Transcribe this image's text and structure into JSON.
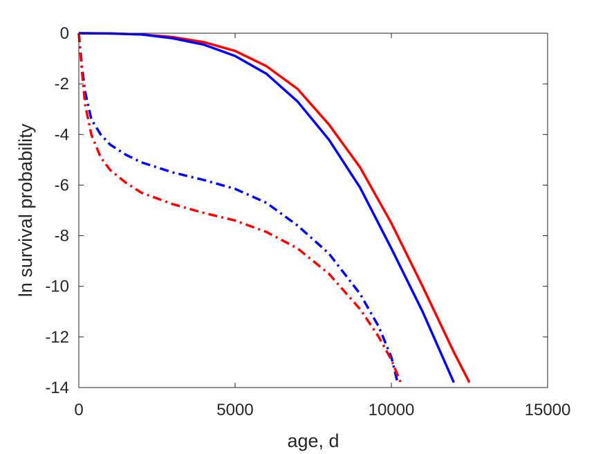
{
  "chart_data": {
    "type": "line",
    "title": "",
    "xlabel": "age, d",
    "ylabel": "ln survival probability",
    "xlim": [
      0,
      15000
    ],
    "ylim": [
      -14,
      0
    ],
    "xticks": [
      0,
      5000,
      10000,
      15000
    ],
    "yticks": [
      -14,
      -12,
      -10,
      -8,
      -6,
      -4,
      -2,
      0
    ],
    "grid": false,
    "legend": "none",
    "series": [
      {
        "color": "#ff0000",
        "style": "solid",
        "x": [
          0,
          1000,
          2000,
          3000,
          4000,
          5000,
          6000,
          7000,
          8000,
          9000,
          10000,
          11000,
          12000,
          12500
        ],
        "y": [
          0,
          -0.01,
          -0.05,
          -0.15,
          -0.35,
          -0.7,
          -1.3,
          -2.2,
          -3.6,
          -5.3,
          -7.5,
          -10.0,
          -12.6,
          -13.8
        ]
      },
      {
        "color": "#0000ff",
        "style": "solid",
        "x": [
          0,
          1000,
          2000,
          3000,
          4000,
          5000,
          6000,
          7000,
          8000,
          9000,
          10000,
          11000,
          12000
        ],
        "y": [
          0,
          -0.01,
          -0.05,
          -0.2,
          -0.45,
          -0.9,
          -1.6,
          -2.7,
          -4.2,
          -6.1,
          -8.5,
          -11.0,
          -13.8
        ]
      },
      {
        "color": "#0000ff",
        "style": "dashdot",
        "x": [
          0,
          100,
          200,
          400,
          700,
          1000,
          1500,
          2000,
          3000,
          4000,
          5000,
          6000,
          7000,
          8000,
          9000,
          9600,
          10000,
          10200
        ],
        "y": [
          0,
          -1.3,
          -2.3,
          -3.4,
          -4.0,
          -4.4,
          -4.8,
          -5.1,
          -5.5,
          -5.8,
          -6.15,
          -6.7,
          -7.6,
          -8.7,
          -10.3,
          -11.6,
          -12.8,
          -13.8
        ]
      },
      {
        "color": "#ff0000",
        "style": "dashdot",
        "x": [
          0,
          100,
          200,
          400,
          700,
          1000,
          1500,
          2000,
          3000,
          4000,
          5000,
          6000,
          7000,
          8000,
          9000,
          9600,
          10000,
          10300
        ],
        "y": [
          0,
          -1.5,
          -2.8,
          -4.0,
          -4.9,
          -5.4,
          -5.9,
          -6.3,
          -6.75,
          -7.1,
          -7.4,
          -7.85,
          -8.5,
          -9.5,
          -10.9,
          -12.0,
          -12.9,
          -13.8
        ]
      }
    ]
  }
}
